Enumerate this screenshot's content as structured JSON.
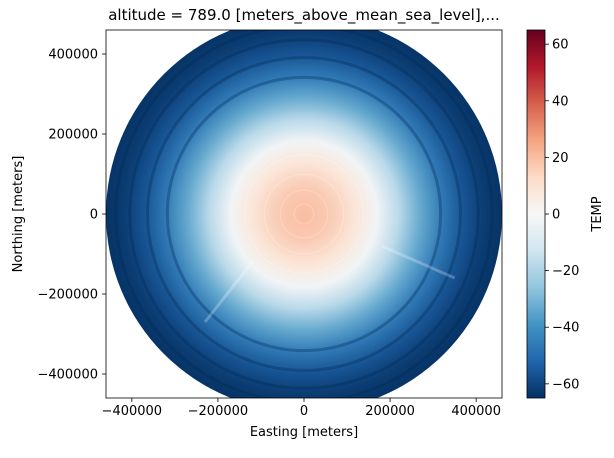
{
  "chart_data": {
    "type": "heatmap",
    "title": "altitude = 789.0 [meters_above_mean_sea_level],...",
    "xlabel": "Easting [meters]",
    "ylabel": "Northing [meters]",
    "xlim": [
      -460000,
      460000
    ],
    "ylim": [
      -460000,
      460000
    ],
    "x_ticks": [
      {
        "value": -400000,
        "label": "−400000"
      },
      {
        "value": -200000,
        "label": "−200000"
      },
      {
        "value": 0,
        "label": "0"
      },
      {
        "value": 200000,
        "label": "200000"
      },
      {
        "value": 400000,
        "label": "400000"
      }
    ],
    "y_ticks": [
      {
        "value": -400000,
        "label": "−400000"
      },
      {
        "value": -200000,
        "label": "−200000"
      },
      {
        "value": 0,
        "label": "0"
      },
      {
        "value": 200000,
        "label": "200000"
      },
      {
        "value": 400000,
        "label": "400000"
      }
    ],
    "data_radius": 460000,
    "colormap": "RdBu_r",
    "colorbar": {
      "label": "TEMP",
      "range": [
        -65,
        65
      ],
      "ticks": [
        {
          "value": 60,
          "label": "60"
        },
        {
          "value": 40,
          "label": "40"
        },
        {
          "value": 20,
          "label": "20"
        },
        {
          "value": 0,
          "label": "0"
        },
        {
          "value": -20,
          "label": "−20"
        },
        {
          "value": -40,
          "label": "−40"
        },
        {
          "value": -60,
          "label": "−60"
        }
      ]
    },
    "radial_profile": [
      {
        "r": 0,
        "value": 20
      },
      {
        "r": 60000,
        "value": 17
      },
      {
        "r": 120000,
        "value": 8
      },
      {
        "r": 170000,
        "value": -2
      },
      {
        "r": 220000,
        "value": -18
      },
      {
        "r": 270000,
        "value": -33
      },
      {
        "r": 320000,
        "value": -46
      },
      {
        "r": 370000,
        "value": -56
      },
      {
        "r": 420000,
        "value": -62
      },
      {
        "r": 460000,
        "value": -64
      }
    ],
    "grid": false
  }
}
